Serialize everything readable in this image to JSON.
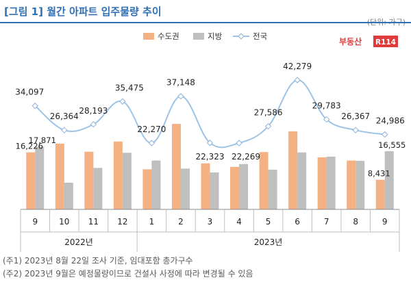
{
  "header": {
    "title": "[그림 1] 월간 아파트 입주물량 추이",
    "unit": "(단위: 가구)"
  },
  "logo": {
    "text": "부동산",
    "badge": "R114"
  },
  "colors": {
    "capital": "#f4b183",
    "local": "#bfbfbf",
    "national": "#9dc3e6",
    "title": "#2e6fb6"
  },
  "chart_data": {
    "type": "bar",
    "categories": [
      "9",
      "10",
      "11",
      "12",
      "1",
      "2",
      "3",
      "4",
      "5",
      "6",
      "7",
      "8",
      "9"
    ],
    "years": [
      {
        "label": "2022년",
        "start": 0,
        "end": 3
      },
      {
        "label": "2023년",
        "start": 4,
        "end": 12
      }
    ],
    "series": [
      {
        "name": "수도권",
        "type": "bar",
        "color": "#f4b183",
        "values": [
          16226,
          18700,
          16400,
          19300,
          11400,
          24300,
          13100,
          12100,
          16300,
          22200,
          14800,
          13900,
          8431
        ]
      },
      {
        "name": "지방",
        "type": "bar",
        "color": "#bfbfbf",
        "values": [
          17871,
          7600,
          11800,
          16100,
          13900,
          11600,
          10500,
          12900,
          11300,
          16200,
          15000,
          13800,
          16555
        ]
      },
      {
        "name": "전국",
        "type": "line",
        "color": "#9dc3e6",
        "values": [
          34097,
          26364,
          28193,
          35475,
          22270,
          37148,
          22323,
          22269,
          27586,
          42279,
          29783,
          26367,
          24986
        ]
      }
    ],
    "bar_labels": [
      {
        "index": 0,
        "series": "수도권",
        "text": "16,226"
      },
      {
        "index": 0,
        "series": "지방",
        "text": "17,871"
      },
      {
        "index": 12,
        "series": "수도권",
        "text": "8,431"
      },
      {
        "index": 12,
        "series": "지방",
        "text": "16,555"
      }
    ],
    "line_labels": [
      "34,097",
      "26,364",
      "28,193",
      "35,475",
      "22,270",
      "37,148",
      "22,323",
      "22,269",
      "27,586",
      "42,279",
      "29,783",
      "26,367",
      "24,986"
    ],
    "legend": {
      "position": "top-right",
      "items": [
        "수도권",
        "지방",
        "전국"
      ]
    },
    "grid": false
  },
  "notes": [
    "(주1) 2023년 8월 22일 조사 기준, 임대포함 총가구수",
    "(주2) 2023년 9월은 예정물량이므로 건설사 사정에 따라 변경될 수 있음"
  ]
}
